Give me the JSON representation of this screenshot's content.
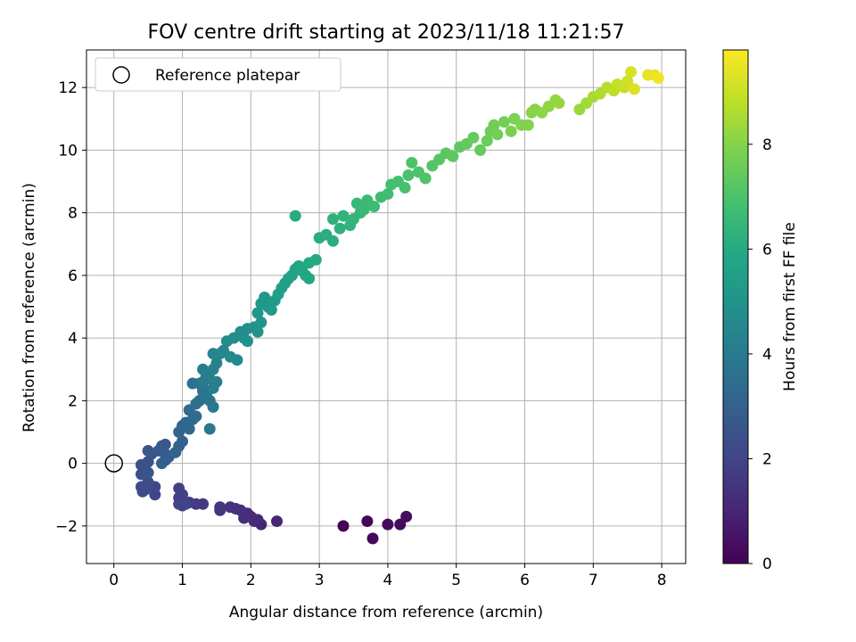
{
  "chart_data": {
    "type": "scatter",
    "title": "FOV centre drift starting at 2023/11/18 11:21:57",
    "xlabel": "Angular distance from reference (arcmin)",
    "ylabel": "Rotation from reference (arcmin)",
    "xlim": [
      -0.4,
      8.35
    ],
    "ylim": [
      -3.2,
      13.2
    ],
    "xticks": [
      0,
      1,
      2,
      3,
      4,
      5,
      6,
      7,
      8
    ],
    "yticks": [
      -2,
      0,
      2,
      4,
      6,
      8,
      10,
      12
    ],
    "grid": true,
    "legend": {
      "placement": "top-left",
      "entries": [
        "Reference platepar"
      ]
    },
    "reference_point": {
      "label": "Reference platepar",
      "x": 0,
      "y": 0,
      "marker": "open-circle"
    },
    "colorbar": {
      "label": "Hours from first FF file",
      "min": 0,
      "max": 9.8,
      "ticks": [
        0,
        2,
        4,
        6,
        8
      ],
      "colormap": "viridis"
    },
    "series": [
      {
        "points": [
          [
            3.35,
            -2.0,
            0.1
          ],
          [
            3.7,
            -1.85,
            0.15
          ],
          [
            3.78,
            -2.4,
            0.2
          ],
          [
            4.0,
            -1.95,
            0.25
          ],
          [
            4.18,
            -1.95,
            0.3
          ],
          [
            4.27,
            -1.7,
            0.35
          ],
          [
            2.38,
            -1.85,
            1.0
          ],
          [
            2.15,
            -1.95,
            1.05
          ],
          [
            2.1,
            -1.8,
            1.1
          ],
          [
            2.05,
            -1.85,
            1.15
          ],
          [
            2.0,
            -1.7,
            1.2
          ],
          [
            1.95,
            -1.6,
            1.25
          ],
          [
            1.9,
            -1.75,
            1.3
          ],
          [
            1.85,
            -1.5,
            1.35
          ],
          [
            1.78,
            -1.45,
            1.4
          ],
          [
            1.7,
            -1.4,
            1.45
          ],
          [
            1.55,
            -1.5,
            1.5
          ],
          [
            1.55,
            -1.4,
            1.55
          ],
          [
            1.3,
            -1.3,
            1.6
          ],
          [
            1.2,
            -1.3,
            1.65
          ],
          [
            1.1,
            -1.25,
            1.7
          ],
          [
            1.0,
            -1.35,
            1.75
          ],
          [
            0.95,
            -1.1,
            1.8
          ],
          [
            0.95,
            -0.8,
            1.85
          ],
          [
            1.0,
            -1.0,
            1.9
          ],
          [
            1.05,
            -1.3,
            1.95
          ],
          [
            0.95,
            -1.3,
            2.0
          ],
          [
            0.6,
            -1.0,
            2.05
          ],
          [
            0.6,
            -0.75,
            2.1
          ],
          [
            0.45,
            -0.85,
            2.15
          ],
          [
            0.4,
            -0.75,
            2.2
          ],
          [
            0.42,
            -0.9,
            2.25
          ],
          [
            0.5,
            -0.6,
            2.3
          ],
          [
            0.4,
            -0.35,
            2.35
          ],
          [
            0.4,
            -0.05,
            2.4
          ],
          [
            0.5,
            0.05,
            2.45
          ],
          [
            0.5,
            -0.3,
            2.5
          ],
          [
            0.55,
            0.3,
            2.55
          ],
          [
            0.5,
            0.4,
            2.6
          ],
          [
            0.7,
            0.55,
            2.65
          ],
          [
            0.75,
            0.6,
            2.7
          ],
          [
            0.65,
            0.4,
            2.75
          ],
          [
            0.75,
            0.3,
            2.8
          ],
          [
            0.8,
            0.2,
            2.85
          ],
          [
            0.75,
            0.1,
            2.9
          ],
          [
            0.7,
            0.0,
            2.95
          ],
          [
            0.9,
            0.35,
            3.0
          ],
          [
            0.95,
            0.55,
            3.05
          ],
          [
            1.0,
            0.7,
            3.1
          ],
          [
            0.95,
            1.0,
            3.15
          ],
          [
            1.0,
            1.2,
            3.2
          ],
          [
            1.05,
            1.3,
            3.25
          ],
          [
            1.1,
            1.1,
            3.3
          ],
          [
            1.15,
            1.4,
            3.35
          ],
          [
            1.2,
            1.5,
            3.4
          ],
          [
            1.1,
            1.7,
            3.45
          ],
          [
            1.2,
            1.9,
            3.5
          ],
          [
            1.25,
            2.0,
            3.55
          ],
          [
            1.3,
            2.3,
            3.6
          ],
          [
            1.15,
            2.55,
            3.65
          ],
          [
            1.25,
            2.55,
            3.7
          ],
          [
            1.3,
            2.4,
            3.75
          ],
          [
            1.35,
            2.2,
            3.8
          ],
          [
            1.4,
            2.0,
            3.85
          ],
          [
            1.45,
            1.8,
            3.9
          ],
          [
            1.4,
            1.1,
            3.95
          ],
          [
            1.3,
            2.6,
            4.0
          ],
          [
            1.35,
            2.8,
            4.05
          ],
          [
            1.3,
            3.0,
            4.1
          ],
          [
            1.4,
            2.7,
            4.15
          ],
          [
            1.45,
            2.4,
            4.2
          ],
          [
            1.5,
            2.6,
            4.25
          ],
          [
            1.45,
            3.0,
            4.3
          ],
          [
            1.5,
            3.2,
            4.35
          ],
          [
            1.45,
            3.5,
            4.4
          ],
          [
            1.55,
            3.5,
            4.45
          ],
          [
            1.6,
            3.6,
            4.5
          ],
          [
            1.7,
            3.4,
            4.55
          ],
          [
            1.8,
            3.3,
            4.6
          ],
          [
            1.65,
            3.9,
            4.65
          ],
          [
            1.75,
            4.0,
            4.7
          ],
          [
            1.85,
            4.2,
            4.75
          ],
          [
            1.95,
            4.3,
            4.8
          ],
          [
            1.9,
            4.0,
            4.85
          ],
          [
            1.95,
            3.9,
            4.9
          ],
          [
            2.05,
            4.35,
            4.95
          ],
          [
            2.1,
            4.2,
            5.0
          ],
          [
            2.15,
            4.5,
            5.05
          ],
          [
            2.1,
            4.8,
            5.1
          ],
          [
            2.15,
            5.1,
            5.15
          ],
          [
            2.2,
            5.3,
            5.2
          ],
          [
            2.25,
            5.0,
            5.25
          ],
          [
            2.3,
            4.9,
            5.3
          ],
          [
            2.35,
            5.2,
            5.35
          ],
          [
            2.4,
            5.4,
            5.4
          ],
          [
            2.45,
            5.6,
            5.45
          ],
          [
            2.5,
            5.75,
            5.5
          ],
          [
            2.55,
            5.9,
            5.55
          ],
          [
            2.6,
            6.0,
            5.6
          ],
          [
            2.65,
            6.2,
            5.65
          ],
          [
            2.7,
            6.3,
            5.7
          ],
          [
            2.75,
            6.15,
            5.75
          ],
          [
            2.8,
            6.0,
            5.8
          ],
          [
            2.85,
            5.9,
            5.85
          ],
          [
            2.85,
            6.4,
            5.9
          ],
          [
            2.95,
            6.5,
            5.95
          ],
          [
            2.65,
            7.9,
            6.0
          ],
          [
            3.0,
            7.2,
            6.05
          ],
          [
            3.1,
            7.3,
            6.1
          ],
          [
            3.2,
            7.1,
            6.15
          ],
          [
            3.3,
            7.5,
            6.2
          ],
          [
            3.2,
            7.8,
            6.25
          ],
          [
            3.35,
            7.9,
            6.3
          ],
          [
            3.45,
            7.6,
            6.35
          ],
          [
            3.5,
            7.8,
            6.4
          ],
          [
            3.6,
            8.0,
            6.45
          ],
          [
            3.55,
            8.3,
            6.5
          ],
          [
            3.65,
            8.1,
            6.55
          ],
          [
            3.7,
            8.4,
            6.6
          ],
          [
            3.8,
            8.2,
            6.65
          ],
          [
            3.9,
            8.5,
            6.7
          ],
          [
            4.0,
            8.6,
            6.75
          ],
          [
            4.05,
            8.9,
            6.8
          ],
          [
            4.15,
            9.0,
            6.85
          ],
          [
            4.25,
            8.8,
            6.9
          ],
          [
            4.3,
            9.2,
            6.95
          ],
          [
            4.45,
            9.3,
            7.0
          ],
          [
            4.35,
            9.6,
            7.05
          ],
          [
            4.55,
            9.1,
            7.1
          ],
          [
            4.65,
            9.5,
            7.15
          ],
          [
            4.75,
            9.7,
            7.2
          ],
          [
            4.85,
            9.9,
            7.25
          ],
          [
            4.95,
            9.8,
            7.3
          ],
          [
            5.05,
            10.1,
            7.35
          ],
          [
            5.15,
            10.2,
            7.4
          ],
          [
            5.25,
            10.4,
            7.45
          ],
          [
            5.35,
            10.0,
            7.5
          ],
          [
            5.45,
            10.3,
            7.55
          ],
          [
            5.5,
            10.6,
            7.6
          ],
          [
            5.55,
            10.8,
            7.65
          ],
          [
            5.6,
            10.5,
            7.7
          ],
          [
            5.7,
            10.9,
            7.75
          ],
          [
            5.8,
            10.6,
            7.8
          ],
          [
            5.85,
            11.0,
            7.85
          ],
          [
            5.95,
            10.8,
            7.9
          ],
          [
            6.05,
            10.8,
            7.95
          ],
          [
            6.1,
            11.2,
            8.0
          ],
          [
            6.15,
            11.3,
            8.05
          ],
          [
            6.25,
            11.2,
            8.1
          ],
          [
            6.35,
            11.4,
            8.15
          ],
          [
            6.45,
            11.6,
            8.2
          ],
          [
            6.5,
            11.5,
            8.25
          ],
          [
            6.8,
            11.3,
            8.3
          ],
          [
            6.9,
            11.5,
            8.4
          ],
          [
            7.0,
            11.7,
            8.5
          ],
          [
            7.1,
            11.8,
            8.6
          ],
          [
            7.2,
            12.0,
            8.7
          ],
          [
            7.3,
            11.9,
            8.8
          ],
          [
            7.35,
            12.1,
            8.9
          ],
          [
            7.45,
            12.0,
            9.0
          ],
          [
            7.5,
            12.2,
            9.1
          ],
          [
            7.55,
            12.5,
            9.2
          ],
          [
            7.6,
            11.95,
            9.3
          ],
          [
            7.8,
            12.4,
            9.4
          ],
          [
            7.9,
            12.4,
            9.5
          ],
          [
            7.95,
            12.3,
            9.6
          ]
        ]
      }
    ]
  }
}
